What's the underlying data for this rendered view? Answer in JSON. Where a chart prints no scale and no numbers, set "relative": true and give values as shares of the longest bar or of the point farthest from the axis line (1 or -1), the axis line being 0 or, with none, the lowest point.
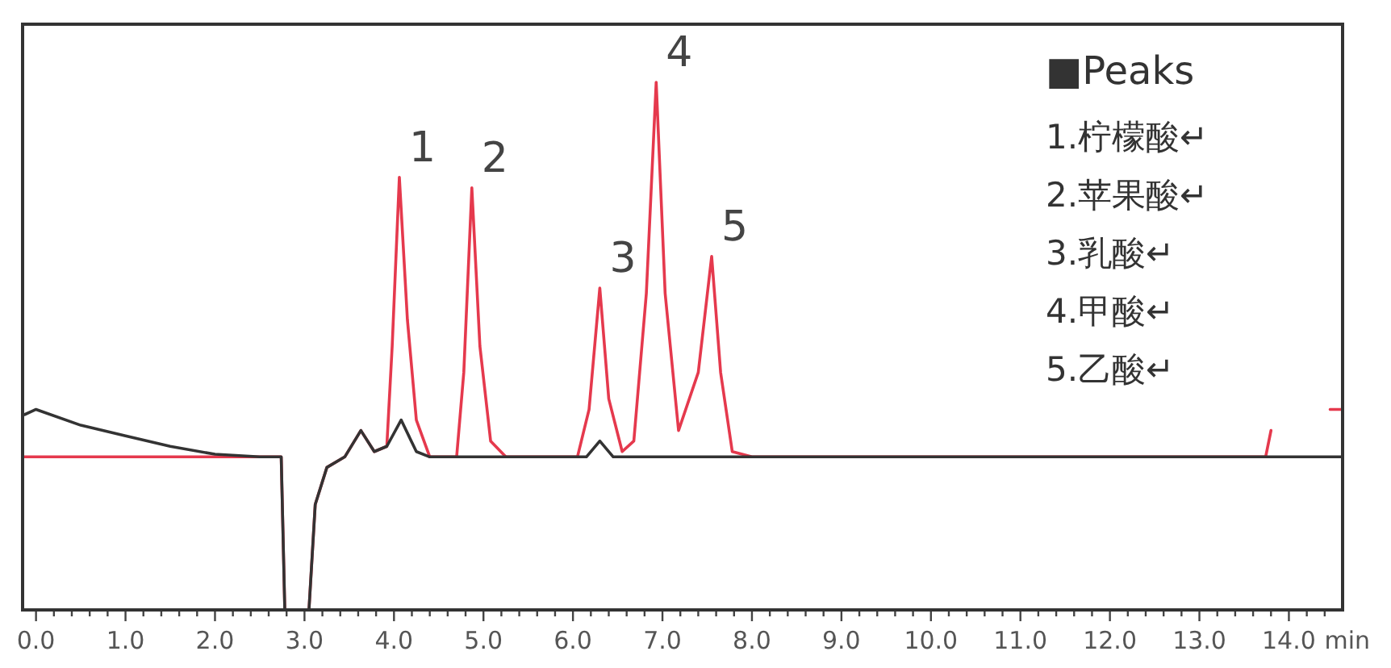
{
  "chart_data": {
    "type": "line",
    "relative": true,
    "xlabel": "min",
    "xlim": [
      -0.15,
      14.6
    ],
    "xticks": [
      {
        "value": 0,
        "label": "0.0"
      },
      {
        "value": 0.2,
        "label": null
      },
      {
        "value": 0.4,
        "label": null
      },
      {
        "value": 0.6,
        "label": null
      },
      {
        "value": 0.8,
        "label": null
      },
      {
        "value": 1,
        "label": "1.0"
      },
      {
        "value": 1.2,
        "label": null
      },
      {
        "value": 1.4,
        "label": null
      },
      {
        "value": 1.6,
        "label": null
      },
      {
        "value": 1.8,
        "label": null
      },
      {
        "value": 2,
        "label": "2.0"
      },
      {
        "value": 2.2,
        "label": null
      },
      {
        "value": 2.4,
        "label": null
      },
      {
        "value": 2.6,
        "label": null
      },
      {
        "value": 2.8,
        "label": null
      },
      {
        "value": 3,
        "label": "3.0"
      },
      {
        "value": 3.2,
        "label": null
      },
      {
        "value": 3.4,
        "label": null
      },
      {
        "value": 3.6,
        "label": null
      },
      {
        "value": 3.8,
        "label": null
      },
      {
        "value": 4,
        "label": "4.0"
      },
      {
        "value": 4.2,
        "label": null
      },
      {
        "value": 4.4,
        "label": null
      },
      {
        "value": 4.6,
        "label": null
      },
      {
        "value": 4.8,
        "label": null
      },
      {
        "value": 5,
        "label": "5.0"
      },
      {
        "value": 5.2,
        "label": null
      },
      {
        "value": 5.4,
        "label": null
      },
      {
        "value": 5.6,
        "label": null
      },
      {
        "value": 5.8,
        "label": null
      },
      {
        "value": 6,
        "label": "6.0"
      },
      {
        "value": 6.2,
        "label": null
      },
      {
        "value": 6.4,
        "label": null
      },
      {
        "value": 6.6,
        "label": null
      },
      {
        "value": 6.8,
        "label": null
      },
      {
        "value": 7,
        "label": "7.0"
      },
      {
        "value": 7.2,
        "label": null
      },
      {
        "value": 7.4,
        "label": null
      },
      {
        "value": 7.6,
        "label": null
      },
      {
        "value": 7.8,
        "label": null
      },
      {
        "value": 8,
        "label": "8.0"
      },
      {
        "value": 8.2,
        "label": null
      },
      {
        "value": 8.4,
        "label": null
      },
      {
        "value": 8.6,
        "label": null
      },
      {
        "value": 8.8,
        "label": null
      },
      {
        "value": 9,
        "label": "9.0"
      },
      {
        "value": 9.2,
        "label": null
      },
      {
        "value": 9.4,
        "label": null
      },
      {
        "value": 9.6,
        "label": null
      },
      {
        "value": 9.8,
        "label": null
      },
      {
        "value": 10,
        "label": "10.0"
      },
      {
        "value": 10.2,
        "label": null
      },
      {
        "value": 10.4,
        "label": null
      },
      {
        "value": 10.6,
        "label": null
      },
      {
        "value": 10.8,
        "label": null
      },
      {
        "value": 11,
        "label": "11.0"
      },
      {
        "value": 11.2,
        "label": null
      },
      {
        "value": 11.4,
        "label": null
      },
      {
        "value": 11.6,
        "label": null
      },
      {
        "value": 11.8,
        "label": null
      },
      {
        "value": 12,
        "label": "12.0"
      },
      {
        "value": 12.2,
        "label": null
      },
      {
        "value": 12.4,
        "label": null
      },
      {
        "value": 12.6,
        "label": null
      },
      {
        "value": 12.8,
        "label": null
      },
      {
        "value": 13,
        "label": "13.0"
      },
      {
        "value": 13.2,
        "label": null
      },
      {
        "value": 13.4,
        "label": null
      },
      {
        "value": 13.6,
        "label": null
      },
      {
        "value": 13.8,
        "label": null
      },
      {
        "value": 14,
        "label": "14.0"
      },
      {
        "value": 14.2,
        "label": null
      },
      {
        "value": 14.4,
        "label": null
      }
    ],
    "series": [
      {
        "color": "#e5394d",
        "x": [
          -0.13,
          2.74,
          2.78,
          3.05,
          3.12,
          3.25,
          3.45,
          3.63,
          3.78,
          3.92,
          3.98,
          4.06,
          4.15,
          4.25,
          4.4,
          4.7,
          4.78,
          4.87,
          4.96,
          5.08,
          5.25,
          6.05,
          6.18,
          6.3,
          6.4,
          6.55,
          6.68,
          6.82,
          6.93,
          7.03,
          7.18,
          7.4,
          7.55,
          7.65,
          7.78,
          8.0,
          13.74,
          13.8,
          14.1,
          14.46,
          14.6
        ],
        "values": [
          0.29,
          0.29,
          0,
          0,
          0.2,
          0.27,
          0.29,
          0.34,
          0.3,
          0.31,
          0.5,
          0.82,
          0.55,
          0.36,
          0.29,
          0.29,
          0.45,
          0.8,
          0.5,
          0.32,
          0.29,
          0.29,
          0.38,
          0.61,
          0.4,
          0.3,
          0.32,
          0.6,
          1.0,
          0.6,
          0.34,
          0.45,
          0.67,
          0.45,
          0.3,
          0.29,
          0.29,
          0.34,
          null,
          0.38,
          0.38
        ]
      },
      {
        "color": "#333333",
        "x": [
          -0.13,
          0.0,
          0.5,
          1.0,
          1.5,
          2.0,
          2.5,
          2.74,
          2.78,
          3.05,
          3.12,
          3.25,
          3.45,
          3.63,
          3.78,
          3.92,
          4.08,
          4.25,
          4.4,
          6.15,
          6.3,
          6.45,
          14.6
        ],
        "values": [
          0.37,
          0.38,
          0.35,
          0.33,
          0.31,
          0.295,
          0.29,
          0.29,
          0,
          0,
          0.2,
          0.27,
          0.29,
          0.34,
          0.3,
          0.31,
          0.36,
          0.3,
          0.29,
          0.29,
          0.32,
          0.29,
          0.29
        ]
      }
    ],
    "annotations": [
      {
        "text": "1",
        "x": 4.06,
        "y": 0.82
      },
      {
        "text": "2",
        "x": 4.87,
        "y": 0.8
      },
      {
        "text": "3",
        "x": 6.3,
        "y": 0.61
      },
      {
        "text": "4",
        "x": 6.93,
        "y": 1.0
      },
      {
        "text": "5",
        "x": 7.55,
        "y": 0.67
      },
      "■Peaks",
      "1.柠檬酸↵",
      "2.苹果酸↵",
      "3.乳酸↵",
      "4.甲酸↵",
      "5.乙酸↵"
    ]
  }
}
